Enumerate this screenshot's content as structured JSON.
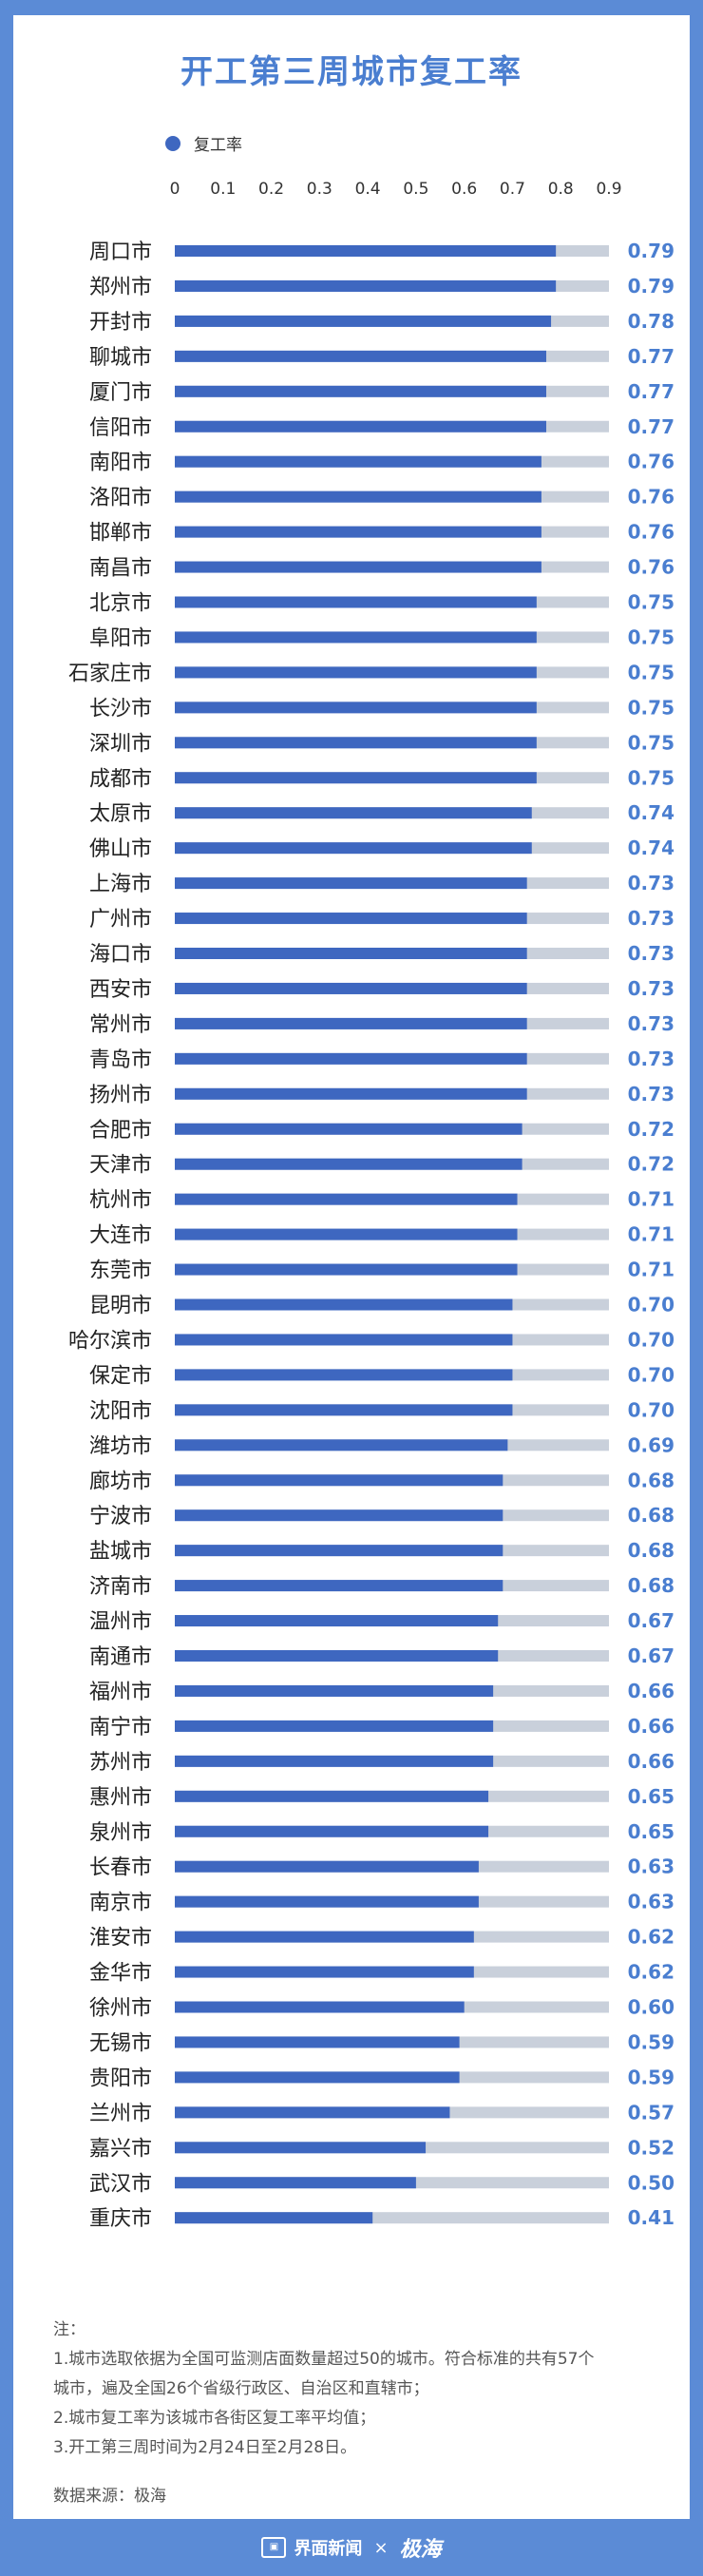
{
  "page": {
    "title": "开工第三周城市复工率",
    "legend_label": "复工率",
    "notes_heading": "注：",
    "notes": [
      "1.城市选取依据为全国可监测店面数量超过50的城市。符合标准的共有57个",
      "城市，遍及全国26个省级行政区、自治区和直辖市；",
      "2.城市复工率为该城市各街区复工率平均值；",
      "3.开工第三周时间为2月24日至2月28日。"
    ],
    "source": "数据来源：极海",
    "footer": {
      "brand1": "界面新闻",
      "separator": "×",
      "brand2": "极海"
    }
  },
  "chart_data": {
    "type": "bar",
    "orientation": "horizontal",
    "title": "开工第三周城市复工率",
    "legend": [
      "复工率"
    ],
    "xlim": [
      0,
      0.9
    ],
    "x_ticks": [
      "0",
      "0.1",
      "0.2",
      "0.3",
      "0.4",
      "0.5",
      "0.6",
      "0.7",
      "0.8",
      "0.9"
    ],
    "colors": {
      "bar": "#3e67c0",
      "track": "#c9d0db",
      "label": "#4a7ed0",
      "city": "#222222"
    },
    "categories": [
      "周口市",
      "郑州市",
      "开封市",
      "聊城市",
      "厦门市",
      "信阳市",
      "南阳市",
      "洛阳市",
      "邯郸市",
      "南昌市",
      "北京市",
      "阜阳市",
      "石家庄市",
      "长沙市",
      "深圳市",
      "成都市",
      "太原市",
      "佛山市",
      "上海市",
      "广州市",
      "海口市",
      "西安市",
      "常州市",
      "青岛市",
      "扬州市",
      "合肥市",
      "天津市",
      "杭州市",
      "大连市",
      "东莞市",
      "昆明市",
      "哈尔滨市",
      "保定市",
      "沈阳市",
      "潍坊市",
      "廊坊市",
      "宁波市",
      "盐城市",
      "济南市",
      "温州市",
      "南通市",
      "福州市",
      "南宁市",
      "苏州市",
      "惠州市",
      "泉州市",
      "长春市",
      "南京市",
      "淮安市",
      "金华市",
      "徐州市",
      "无锡市",
      "贵阳市",
      "兰州市",
      "嘉兴市",
      "武汉市",
      "重庆市"
    ],
    "values": [
      0.79,
      0.79,
      0.78,
      0.77,
      0.77,
      0.77,
      0.76,
      0.76,
      0.76,
      0.76,
      0.75,
      0.75,
      0.75,
      0.75,
      0.75,
      0.75,
      0.74,
      0.74,
      0.73,
      0.73,
      0.73,
      0.73,
      0.73,
      0.73,
      0.73,
      0.72,
      0.72,
      0.71,
      0.71,
      0.71,
      0.7,
      0.7,
      0.7,
      0.7,
      0.69,
      0.68,
      0.68,
      0.68,
      0.68,
      0.67,
      0.67,
      0.66,
      0.66,
      0.66,
      0.65,
      0.65,
      0.63,
      0.63,
      0.62,
      0.62,
      0.6,
      0.59,
      0.59,
      0.57,
      0.52,
      0.5,
      0.41
    ],
    "value_labels": [
      "0.79",
      "0.79",
      "0.78",
      "0.77",
      "0.77",
      "0.77",
      "0.76",
      "0.76",
      "0.76",
      "0.76",
      "0.75",
      "0.75",
      "0.75",
      "0.75",
      "0.75",
      "0.75",
      "0.74",
      "0.74",
      "0.73",
      "0.73",
      "0.73",
      "0.73",
      "0.73",
      "0.73",
      "0.73",
      "0.72",
      "0.72",
      "0.71",
      "0.71",
      "0.71",
      "0.70",
      "0.70",
      "0.70",
      "0.70",
      "0.69",
      "0.68",
      "0.68",
      "0.68",
      "0.68",
      "0.67",
      "0.67",
      "0.66",
      "0.66",
      "0.66",
      "0.65",
      "0.65",
      "0.63",
      "0.63",
      "0.62",
      "0.62",
      "0.60",
      "0.59",
      "0.59",
      "0.57",
      "0.52",
      "0.50",
      "0.41"
    ]
  }
}
